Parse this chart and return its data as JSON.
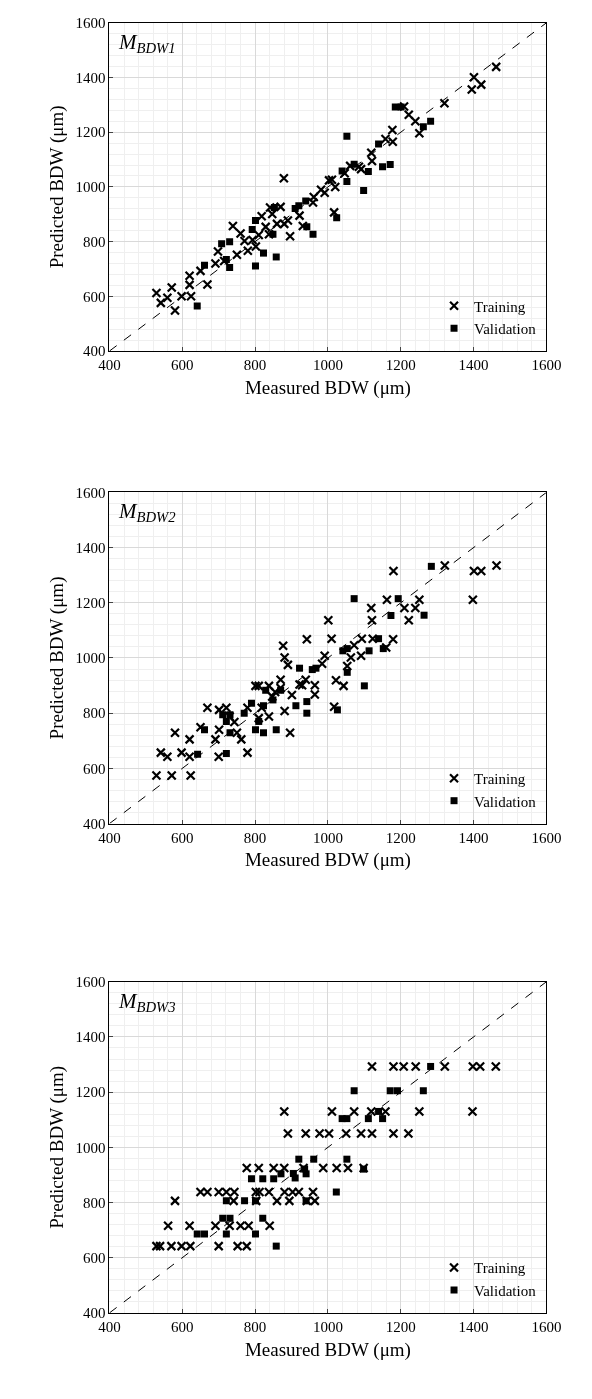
{
  "chart_data": [
    {
      "type": "scatter",
      "title": "M$_{BDW1}$",
      "xlabel": "Measured BDW (μm)",
      "ylabel": "Predicted BDW (μm)",
      "xlim": [
        400,
        1600
      ],
      "ylim": [
        400,
        1600
      ],
      "xticks": [
        400,
        600,
        800,
        1000,
        1200,
        1400,
        1600
      ],
      "yticks": [
        400,
        600,
        800,
        1000,
        1200,
        1400,
        1600
      ],
      "grid": true,
      "legend": "bottom right",
      "series": [
        {
          "name": "Training",
          "color": "#000000",
          "marker": "cross",
          "x": [
            529,
            541,
            559,
            571,
            580,
            598,
            620,
            620,
            624,
            650,
            669,
            691,
            698,
            715,
            739,
            750,
            760,
            771,
            780,
            793,
            802,
            810,
            818,
            829,
            838,
            841,
            847,
            860,
            870,
            879,
            880,
            890,
            896,
            922,
            931,
            959,
            961,
            981,
            991,
            1003,
            1011,
            1020,
            1017,
            1046,
            1061,
            1085,
            1091,
            1119,
            1121,
            1158,
            1177,
            1178,
            1209,
            1222,
            1240,
            1251,
            1320,
            1395,
            1401,
            1421,
            1462
          ],
          "values": [
            612,
            576,
            595,
            632,
            548,
            600,
            675,
            642,
            600,
            693,
            643,
            720,
            764,
            729,
            857,
            752,
            830,
            802,
            767,
            806,
            782,
            824,
            893,
            854,
            827,
            925,
            901,
            865,
            927,
            1032,
            865,
            877,
            820,
            895,
            857,
            943,
            963,
            990,
            979,
            1024,
            1026,
            1000,
            907,
            1050,
            1077,
            1074,
            1065,
            1125,
            1095,
            1175,
            1208,
            1165,
            1294,
            1264,
            1240,
            1196,
            1306,
            1356,
            1401,
            1374,
            1439
          ]
        },
        {
          "name": "Validation",
          "color": "#000000",
          "marker": "square",
          "x": [
            641,
            661,
            708,
            721,
            730,
            730,
            792,
            801,
            801,
            823,
            849,
            858,
            853,
            910,
            920,
            939,
            942,
            959,
            1024,
            1039,
            1052,
            1052,
            1072,
            1098,
            1111,
            1139,
            1150,
            1171,
            1185,
            1201,
            1262,
            1282
          ],
          "values": [
            565,
            714,
            792,
            735,
            800,
            705,
            844,
            877,
            711,
            758,
            827,
            744,
            925,
            921,
            931,
            949,
            854,
            827,
            887,
            1058,
            1185,
            1020,
            1083,
            987,
            1056,
            1157,
            1074,
            1082,
            1292,
            1292,
            1220,
            1240
          ]
        },
        {
          "type": "line",
          "color": "#000000",
          "line_style": "dashed",
          "marker": "none",
          "x": [
            400,
            1600
          ],
          "values": [
            400,
            1600
          ]
        }
      ]
    },
    {
      "type": "scatter",
      "title": "M$_{BDW2}$",
      "xlabel": "Measured BDW (μm)",
      "ylabel": "Predicted BDW (μm)",
      "xlim": [
        400,
        1600
      ],
      "ylim": [
        400,
        1600
      ],
      "xticks": [
        400,
        600,
        800,
        1000,
        1200,
        1400,
        1600
      ],
      "yticks": [
        400,
        600,
        800,
        1000,
        1200,
        1400,
        1600
      ],
      "grid": true,
      "legend": "bottom right",
      "series": [
        {
          "name": "Training",
          "color": "#000000",
          "marker": "cross",
          "x": [
            529,
            541,
            559,
            571,
            580,
            598,
            620,
            620,
            623,
            650,
            669,
            691,
            700,
            701,
            701,
            721,
            730,
            743,
            750,
            762,
            779,
            779,
            801,
            810,
            810,
            818,
            838,
            838,
            847,
            855,
            870,
            870,
            877,
            881,
            890,
            881,
            896,
            901,
            922,
            929,
            942,
            939,
            964,
            964,
            984,
            991,
            1001,
            1010,
            1022,
            1043,
            1053,
            1063,
            1072,
            1091,
            1093,
            1119,
            1121,
            1123,
            1162,
            1160,
            1179,
            1180,
            1210,
            1222,
            1240,
            1251,
            1321,
            1398,
            1401,
            1421,
            1463,
            1017
          ],
          "values": [
            574,
            657,
            642,
            574,
            729,
            657,
            642,
            705,
            574,
            749,
            820,
            705,
            642,
            740,
            812,
            820,
            788,
            768,
            729,
            705,
            657,
            820,
            899,
            899,
            782,
            820,
            788,
            899,
            860,
            877,
            921,
            891,
            1044,
            1002,
            975,
            808,
            729,
            866,
            904,
            901,
            1068,
            921,
            901,
            868,
            979,
            1008,
            1137,
            1070,
            919,
            899,
            971,
            1002,
            1046,
            1008,
            1070,
            1181,
            1137,
            1070,
            1211,
            1038,
            1068,
            1315,
            1181,
            1137,
            1181,
            1211,
            1335,
            1211,
            1315,
            1315,
            1335,
            823
          ]
        },
        {
          "name": "Validation",
          "color": "#000000",
          "marker": "square",
          "x": [
            642,
            661,
            721,
            711,
            721,
            731,
            731,
            770,
            790,
            801,
            810,
            823,
            823,
            829,
            849,
            858,
            870,
            912,
            922,
            942,
            942,
            957,
            967,
            1026,
            1041,
            1053,
            1053,
            1072,
            1100,
            1113,
            1139,
            1152,
            1173,
            1193,
            1264,
            1284
          ],
          "values": [
            651,
            740,
            654,
            794,
            770,
            794,
            729,
            800,
            836,
            740,
            770,
            827,
            729,
            883,
            848,
            740,
            883,
            827,
            963,
            842,
            800,
            958,
            963,
            812,
            1026,
            1034,
            948,
            1215,
            899,
            1026,
            1070,
            1034,
            1154,
            1215,
            1155,
            1332
          ]
        },
        {
          "type": "line",
          "color": "#000000",
          "line_style": "dashed",
          "marker": "none",
          "x": [
            400,
            1600
          ],
          "values": [
            400,
            1600
          ]
        }
      ]
    },
    {
      "type": "scatter",
      "title": "M$_{BDW3}$",
      "xlabel": "Measured BDW (μm)",
      "ylabel": "Predicted BDW (μm)",
      "xlim": [
        400,
        1600
      ],
      "ylim": [
        400,
        1600
      ],
      "xticks": [
        400,
        600,
        800,
        1000,
        1200,
        1400,
        1600
      ],
      "yticks": [
        400,
        600,
        800,
        1000,
        1200,
        1400,
        1600
      ],
      "grid": true,
      "legend": "bottom right",
      "series": [
        {
          "name": "Training",
          "color": "#000000",
          "marker": "cross",
          "x": [
            1121,
            1180,
            1208,
            1241,
            1321,
            1398,
            1418,
            1461,
            880,
            1011,
            1072,
            1119,
            1158,
            1251,
            1397,
            890,
            939,
            977,
            1003,
            1050,
            1091,
            1121,
            1180,
            1221,
            777,
            810,
            851,
            880,
            933,
            987,
            1024,
            1055,
            1098,
            650,
            669,
            700,
            721,
            743,
            802,
            812,
            838,
            881,
            903,
            920,
            959,
            580,
            741,
            803,
            860,
            894,
            942,
            964,
            561,
            620,
            691,
            730,
            760,
            782,
            840,
            529,
            539,
            570,
            598,
            622,
            700,
            752,
            777
          ],
          "values": [
            1293,
            1293,
            1293,
            1293,
            1293,
            1293,
            1293,
            1293,
            1130,
            1130,
            1130,
            1130,
            1130,
            1130,
            1130,
            1050,
            1050,
            1050,
            1050,
            1050,
            1050,
            1050,
            1050,
            1050,
            925,
            925,
            925,
            925,
            925,
            925,
            925,
            925,
            925,
            838,
            838,
            838,
            838,
            838,
            838,
            838,
            838,
            838,
            838,
            838,
            838,
            806,
            806,
            806,
            806,
            806,
            806,
            806,
            716,
            716,
            716,
            716,
            716,
            716,
            716,
            642,
            642,
            642,
            642,
            642,
            642,
            642,
            642
          ]
        },
        {
          "name": "Validation",
          "color": "#000000",
          "marker": "square",
          "x": [
            1282,
            1072,
            1171,
            1191,
            1262,
            1139,
            1039,
            1052,
            1111,
            1150,
            920,
            961,
            1052,
            936,
            1098,
            790,
            821,
            851,
            871,
            905,
            910,
            940,
            1023,
            721,
            771,
            801,
            940,
            711,
            731,
            821,
            641,
            661,
            721,
            801,
            858
          ],
          "values": [
            1293,
            1205,
            1205,
            1205,
            1205,
            1130,
            1104,
            1104,
            1104,
            1104,
            957,
            957,
            957,
            921,
            921,
            886,
            886,
            886,
            904,
            905,
            889,
            904,
            838,
            806,
            806,
            806,
            806,
            743,
            743,
            743,
            686,
            686,
            686,
            686,
            642
          ]
        },
        {
          "type": "line",
          "color": "#000000",
          "line_style": "dashed",
          "marker": "none",
          "x": [
            400,
            1600
          ],
          "values": [
            400,
            1600
          ]
        }
      ]
    }
  ]
}
